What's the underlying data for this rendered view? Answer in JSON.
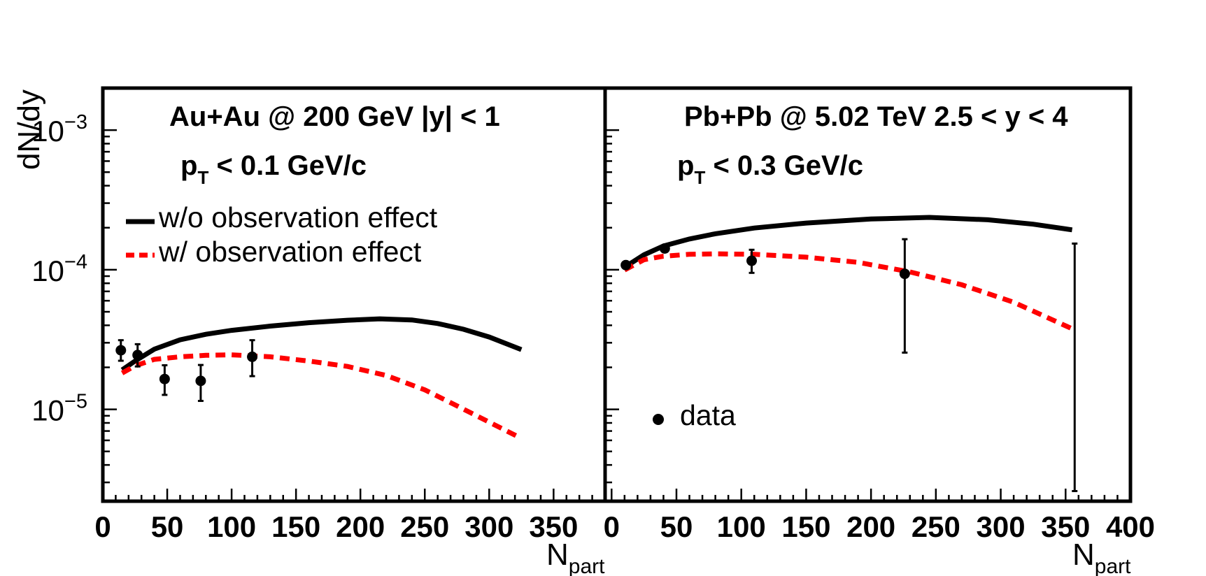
{
  "chart_data": [
    {
      "type": "line",
      "panel": "left",
      "title": "Au+Au @ 200 GeV |y| < 1",
      "pt_cut": {
        "prefix": "p",
        "sub": "T",
        "suffix": " < 0.1 GeV/c"
      },
      "xlabel": {
        "main": "N",
        "sub": "part"
      },
      "ylabel": "dN/dy",
      "xlim": [
        0,
        390
      ],
      "ylim": [
        2.2e-06,
        0.002
      ],
      "yscale": "log",
      "xticks": [
        "0",
        "50",
        "100",
        "150",
        "200",
        "250",
        "300",
        "350"
      ],
      "xtick_values": [
        0,
        50,
        100,
        150,
        200,
        250,
        300,
        350
      ],
      "yticks": [
        {
          "value": 0.001,
          "base": "10",
          "exp": "−3"
        },
        {
          "value": 0.0001,
          "base": "10",
          "exp": "−4"
        },
        {
          "value": 1e-05,
          "base": "10",
          "exp": "−5"
        }
      ],
      "legend": [
        {
          "label": "w/o observation effect",
          "style": "solid",
          "color": "#000000"
        },
        {
          "label": "w/ observation effect",
          "style": "dashed",
          "color": "#ff0000"
        }
      ],
      "series": [
        {
          "name": "w/o observation effect",
          "style": "solid",
          "x": [
            15,
            25,
            40,
            60,
            80,
            100,
            130,
            160,
            190,
            215,
            240,
            260,
            280,
            300,
            325
          ],
          "y": [
            1.92e-05,
            2.22e-05,
            2.7e-05,
            3.15e-05,
            3.45e-05,
            3.68e-05,
            3.95e-05,
            4.18e-05,
            4.35e-05,
            4.45e-05,
            4.37e-05,
            4.12e-05,
            3.75e-05,
            3.3e-05,
            2.68e-05
          ]
        },
        {
          "name": "w/ observation effect",
          "style": "dashed",
          "x": [
            15,
            25,
            40,
            60,
            80,
            100,
            130,
            160,
            190,
            220,
            250,
            275,
            300,
            325
          ],
          "y": [
            1.82e-05,
            2.05e-05,
            2.28e-05,
            2.38e-05,
            2.44e-05,
            2.46e-05,
            2.38e-05,
            2.22e-05,
            2.03e-05,
            1.75e-05,
            1.38e-05,
            1.06e-05,
            8.1e-06,
            6.2e-06
          ]
        },
        {
          "name": "data",
          "style": "points",
          "x": [
            14,
            27,
            48,
            76,
            116
          ],
          "y": [
            2.65e-05,
            2.45e-05,
            1.65e-05,
            1.6e-05,
            2.38e-05
          ],
          "yerr_low": [
            4.2e-06,
            4.2e-06,
            3.8e-06,
            4.5e-06,
            6.5e-06
          ],
          "yerr_high": [
            4.8e-06,
            4.8e-06,
            4.2e-06,
            4.8e-06,
            7.5e-06
          ]
        }
      ]
    },
    {
      "type": "line",
      "panel": "right",
      "title": "Pb+Pb @ 5.02 TeV 2.5 < y < 4",
      "pt_cut": {
        "prefix": "p",
        "sub": "T",
        "suffix": " < 0.3 GeV/c"
      },
      "xlabel": {
        "main": "N",
        "sub": "part"
      },
      "xlim": [
        -5,
        400
      ],
      "ylim": [
        2.2e-06,
        0.002
      ],
      "yscale": "log",
      "xticks": [
        "0",
        "50",
        "100",
        "150",
        "200",
        "250",
        "300",
        "350",
        "400"
      ],
      "xtick_values": [
        0,
        50,
        100,
        150,
        200,
        250,
        300,
        350,
        400
      ],
      "legend": [
        {
          "label": "data",
          "style": "marker",
          "color": "#000000"
        }
      ],
      "series": [
        {
          "name": "w/o observation effect",
          "style": "solid",
          "x": [
            12,
            25,
            40,
            60,
            80,
            110,
            150,
            200,
            245,
            290,
            325,
            355
          ],
          "y": [
            0.000107,
            0.000128,
            0.000148,
            0.000166,
            0.000181,
            0.000199,
            0.000216,
            0.000231,
            0.000237,
            0.000228,
            0.000212,
            0.000193
          ]
        },
        {
          "name": "w/ observation effect",
          "style": "dashed",
          "x": [
            10,
            25,
            40,
            60,
            80,
            110,
            150,
            190,
            230,
            270,
            310,
            355
          ],
          "y": [
            9.95e-05,
            0.000118,
            0.000125,
            0.000129,
            0.00013,
            0.000129,
            0.000123,
            0.000113,
            9.65e-05,
            7.8e-05,
            5.85e-05,
            3.78e-05
          ]
        },
        {
          "name": "data",
          "style": "points",
          "x": [
            11,
            41,
            108,
            226,
            357
          ],
          "y": [
            0.000108,
            0.000142,
            0.000116,
            9.35e-05,
            null
          ],
          "yerr_low": [
            5e-06,
            7e-06,
            2.1e-05,
            6.8e-05,
            null
          ],
          "yerr_high": [
            5e-06,
            7e-06,
            2.3e-05,
            7.2e-05,
            null
          ],
          "bar_only": [
            null,
            null,
            null,
            null,
            {
              "low": 2.6e-06,
              "high": 0.000154
            }
          ]
        }
      ]
    }
  ]
}
